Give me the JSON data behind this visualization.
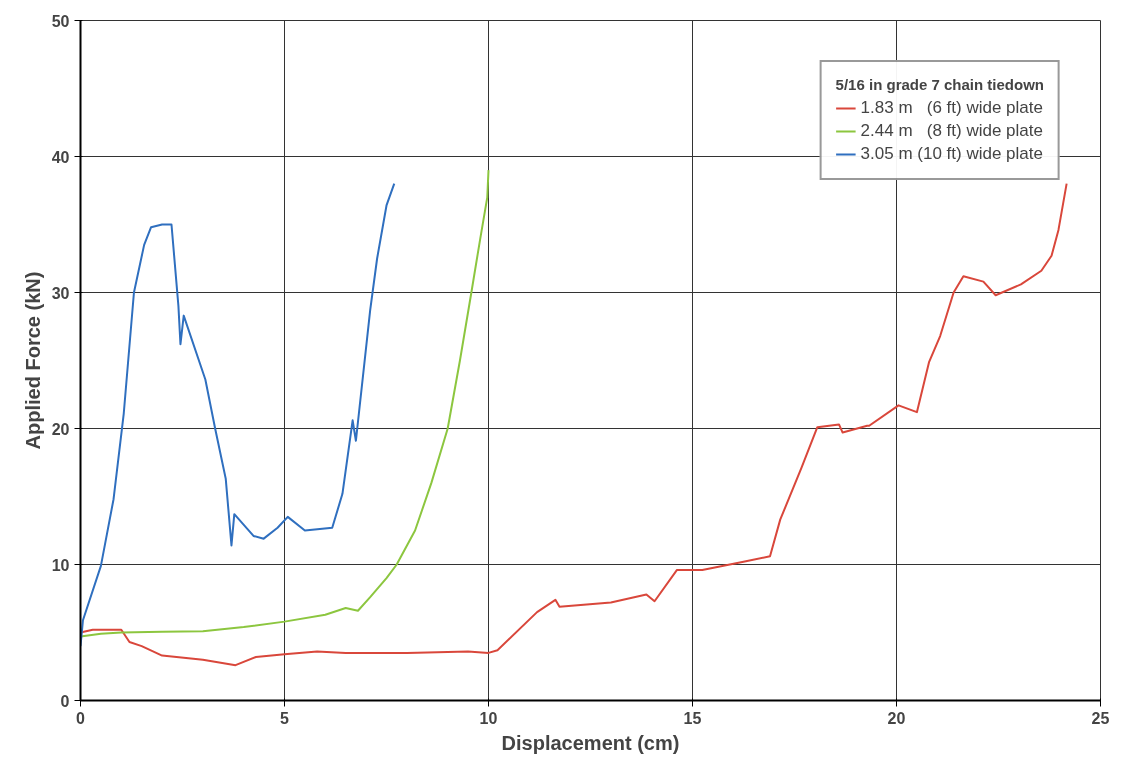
{
  "chart_data": {
    "type": "line",
    "xlabel": "Displacement (cm)",
    "ylabel": "Applied Force (kN)",
    "legend_title": "5/16 in grade 7 chain tiedown",
    "xlim": [
      0,
      25
    ],
    "ylim": [
      0,
      50
    ],
    "xticks": [
      0,
      5,
      10,
      15,
      20,
      25
    ],
    "yticks": [
      0,
      10,
      20,
      30,
      40,
      50
    ],
    "grid": true,
    "legend": "top right",
    "line_style": "solid",
    "marker": "none",
    "series": [
      {
        "name": "1.83 m   (6 ft) wide plate",
        "color": "#d9473b",
        "x": [
          0,
          0.3,
          1.0,
          1.2,
          1.5,
          2.0,
          3.0,
          3.8,
          4.3,
          5.0,
          5.8,
          6.5,
          7.0,
          8.0,
          9.5,
          10.0,
          10.22,
          11.19,
          11.64,
          11.74,
          13.0,
          13.87,
          14.07,
          14.62,
          15.24,
          16.25,
          16.9,
          17.15,
          17.67,
          18.06,
          18.59,
          18.68,
          19.28,
          19.33,
          20.05,
          20.5,
          20.8,
          21.07,
          21.4,
          21.64,
          22.13,
          22.43,
          23.05,
          23.55,
          23.8,
          23.97,
          24.17
        ],
        "values": [
          5.0,
          5.2,
          5.2,
          4.3,
          4.0,
          3.3,
          3.0,
          2.6,
          3.2,
          3.4,
          3.6,
          3.5,
          3.5,
          3.5,
          3.6,
          3.5,
          3.7,
          6.5,
          7.4,
          6.9,
          7.2,
          7.8,
          7.3,
          9.6,
          9.6,
          10.2,
          10.6,
          13.3,
          17.1,
          20.1,
          20.3,
          19.7,
          20.2,
          20.2,
          21.7,
          21.2,
          24.9,
          26.8,
          30.0,
          31.2,
          30.8,
          29.8,
          30.6,
          31.6,
          32.7,
          34.6,
          38.0
        ]
      },
      {
        "name": "2.44 m   (8 ft) wide plate",
        "color": "#8cc63f",
        "x": [
          0,
          0.5,
          1.0,
          2.0,
          3.0,
          4.0,
          5.0,
          6.0,
          6.5,
          6.8,
          7.1,
          7.5,
          7.75,
          8.2,
          8.6,
          9.0,
          9.3,
          9.58,
          9.8,
          9.97,
          10.0
        ],
        "values": [
          4.7,
          4.9,
          5.0,
          5.05,
          5.1,
          5.4,
          5.8,
          6.3,
          6.8,
          6.6,
          7.6,
          9.0,
          10.0,
          12.5,
          16.0,
          20.0,
          25.0,
          30.0,
          34.0,
          37.0,
          39.0
        ]
      },
      {
        "name": "3.05 m (10 ft) wide plate",
        "color": "#2f6fbf",
        "x": [
          0,
          0.06,
          0.5,
          0.81,
          1.06,
          1.31,
          1.56,
          1.73,
          2.0,
          2.23,
          2.4,
          2.45,
          2.53,
          3.06,
          3.3,
          3.56,
          3.7,
          3.77,
          4.24,
          4.49,
          4.83,
          5.08,
          5.5,
          6.17,
          6.42,
          6.67,
          6.75,
          7.1,
          7.27,
          7.5,
          7.69
        ],
        "values": [
          4.0,
          5.9,
          9.9,
          14.8,
          21.1,
          30.0,
          33.5,
          34.8,
          35.0,
          35.0,
          29.0,
          26.2,
          28.3,
          23.6,
          20.0,
          16.3,
          11.4,
          13.7,
          12.1,
          11.9,
          12.7,
          13.5,
          12.5,
          12.7,
          15.2,
          20.6,
          19.1,
          28.7,
          32.5,
          36.4,
          38.0
        ]
      }
    ]
  }
}
